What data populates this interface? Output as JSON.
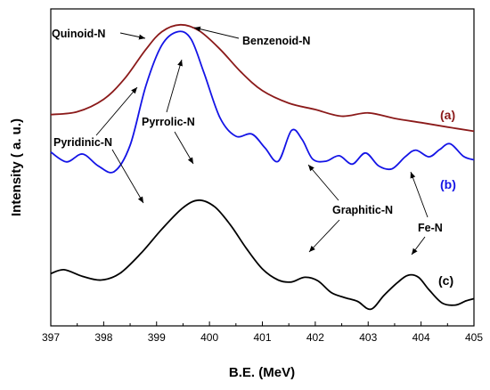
{
  "chart_data": {
    "type": "line",
    "title": "",
    "xlabel": "B.E. (MeV)",
    "ylabel": "Intensity ( a. u.)",
    "xlim": [
      397,
      405
    ],
    "x_ticks": [
      "397",
      "398",
      "399",
      "400",
      "401",
      "402",
      "403",
      "404",
      "405"
    ],
    "y_ticks": false,
    "grid": false,
    "series": [
      {
        "name": "(a)",
        "color": "#8b1a1a",
        "x": [
          397.0,
          397.5,
          398.0,
          398.4,
          398.8,
          399.1,
          399.45,
          399.8,
          400.2,
          400.6,
          401.0,
          401.5,
          402.0,
          402.5,
          403.0,
          403.5,
          404.0,
          404.5,
          405.0
        ],
        "y": [
          1.0,
          1.1,
          1.55,
          2.3,
          3.35,
          3.98,
          4.23,
          4.02,
          3.35,
          2.52,
          1.86,
          1.41,
          1.18,
          0.94,
          1.06,
          0.86,
          0.71,
          0.55,
          0.4
        ]
      },
      {
        "name": "(b)",
        "color": "#1414e6",
        "x": [
          397.0,
          397.3,
          397.6,
          397.9,
          398.2,
          398.5,
          398.8,
          399.1,
          399.4,
          399.65,
          399.9,
          400.2,
          400.5,
          400.8,
          401.05,
          401.3,
          401.55,
          401.75,
          401.95,
          402.2,
          402.45,
          402.7,
          402.95,
          403.2,
          403.45,
          403.7,
          403.9,
          404.15,
          404.35,
          404.55,
          404.8,
          405.0
        ],
        "y": [
          -0.35,
          -0.7,
          -0.42,
          -0.85,
          -1.05,
          -0.1,
          2.05,
          3.5,
          3.98,
          3.72,
          2.48,
          0.88,
          0.22,
          0.3,
          -0.2,
          -0.68,
          0.43,
          0.11,
          -0.6,
          -0.68,
          -0.48,
          -0.78,
          -0.38,
          -0.85,
          -0.95,
          -0.52,
          -0.28,
          -0.52,
          -0.26,
          -0.05,
          -0.5,
          -0.63
        ]
      },
      {
        "name": "(c)",
        "color": "#000000",
        "x": [
          397.0,
          397.25,
          397.6,
          397.95,
          398.3,
          398.7,
          399.1,
          399.5,
          399.8,
          400.1,
          400.4,
          400.7,
          401.0,
          401.3,
          401.55,
          401.8,
          402.05,
          402.3,
          402.55,
          402.8,
          403.05,
          403.3,
          403.55,
          403.75,
          403.95,
          404.15,
          404.4,
          404.65,
          404.85,
          405.0
        ],
        "y": [
          -4.72,
          -4.58,
          -4.82,
          -4.95,
          -4.72,
          -4.0,
          -3.12,
          -2.35,
          -2.08,
          -2.32,
          -2.98,
          -3.82,
          -4.55,
          -4.95,
          -5.02,
          -4.85,
          -4.98,
          -5.4,
          -5.58,
          -5.72,
          -6.0,
          -5.5,
          -5.05,
          -4.78,
          -4.85,
          -5.3,
          -5.78,
          -5.85,
          -5.7,
          -5.62
        ]
      }
    ],
    "annotations": [
      {
        "id": "quinoid",
        "text": "Quinoid-N"
      },
      {
        "id": "benzenoid",
        "text": "Benzenoid-N"
      },
      {
        "id": "pyrrolic",
        "text": "Pyrrolic-N"
      },
      {
        "id": "pyridinic",
        "text": "Pyridinic-N"
      },
      {
        "id": "graphitic",
        "text": "Graphitic-N"
      },
      {
        "id": "fen",
        "text": "Fe-N"
      }
    ]
  }
}
